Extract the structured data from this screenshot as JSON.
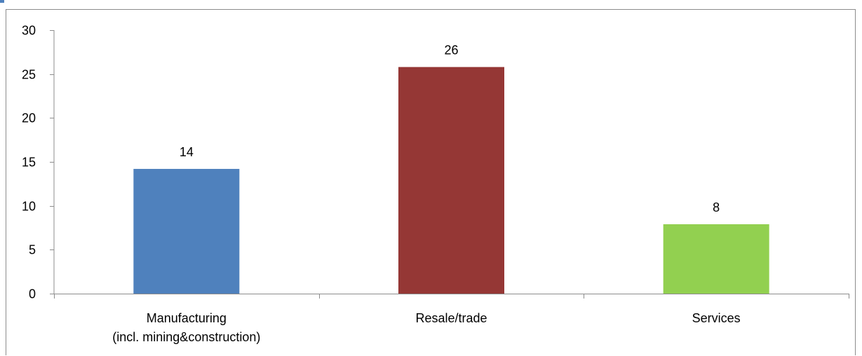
{
  "chart_data": {
    "type": "bar",
    "title": "",
    "xlabel": "",
    "ylabel": "",
    "ylim": [
      0,
      30
    ],
    "yticks": [
      0,
      5,
      10,
      15,
      20,
      25,
      30
    ],
    "categories": [
      [
        "Manufacturing",
        "(incl. mining&construction)"
      ],
      [
        "Resale/trade"
      ],
      [
        "Services"
      ]
    ],
    "values": [
      14.2,
      25.8,
      7.9
    ],
    "data_labels": [
      "14",
      "26",
      "8"
    ],
    "colors": [
      "#4f81bd",
      "#953735",
      "#92d050"
    ],
    "grid": false,
    "legend": "none"
  }
}
